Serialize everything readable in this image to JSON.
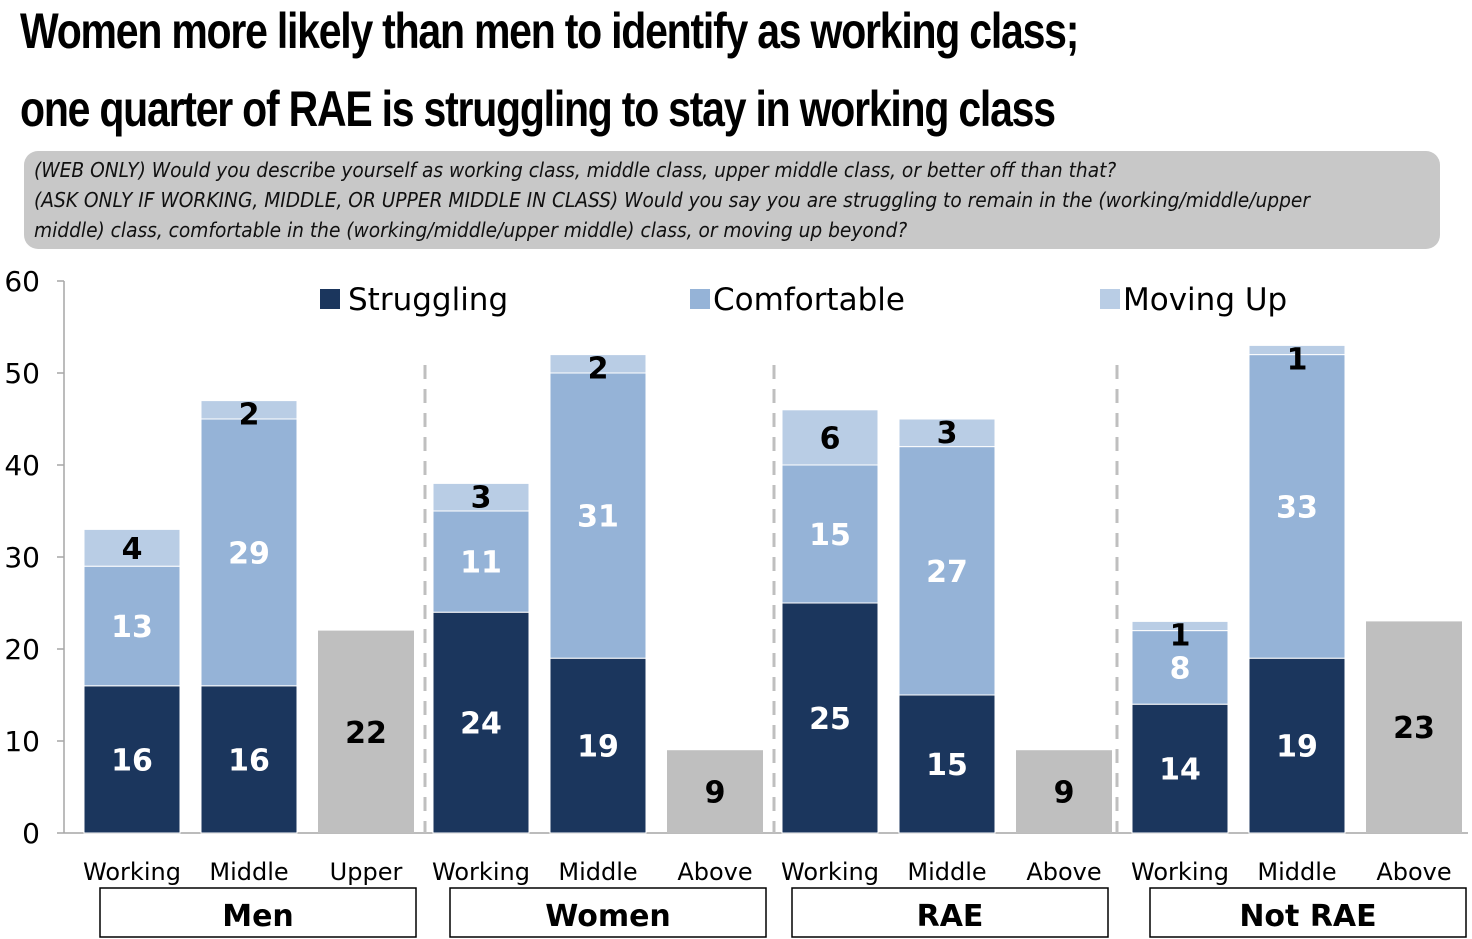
{
  "title": {
    "line1": "Women more likely than men to identify as working class;",
    "line2": "one quarter of RAE is struggling to stay in working class"
  },
  "question": {
    "line1": "(WEB ONLY) Would you describe yourself as working class, middle class, upper middle class, or better off than that?",
    "line2": "(ASK ONLY IF WORKING, MIDDLE, OR UPPER MIDDLE IN CLASS) Would you say you are struggling to remain in the (working/middle/upper",
    "line3": "middle) class, comfortable in the (working/middle/upper middle) class, or moving up beyond?"
  },
  "chart_data": {
    "type": "bar",
    "stacked": true,
    "title": "",
    "xlabel": "",
    "ylabel": "",
    "ylim": [
      0,
      60
    ],
    "yticks": [
      0,
      10,
      20,
      30,
      40,
      50,
      60
    ],
    "legend_position": "top",
    "series": [
      {
        "name": "Struggling",
        "color": "#1b365d"
      },
      {
        "name": "Comfortable",
        "color": "#95b3d7"
      },
      {
        "name": "Moving Up",
        "color": "#b9cde5"
      }
    ],
    "other_color": "#bfbfbf",
    "groups": [
      {
        "name": "Men",
        "bars": [
          {
            "label": "Working",
            "values": [
              16,
              13,
              4
            ]
          },
          {
            "label": "Middle",
            "values": [
              16,
              29,
              2
            ]
          },
          {
            "label": "Upper",
            "single": 22
          }
        ]
      },
      {
        "name": "Women",
        "bars": [
          {
            "label": "Working",
            "values": [
              24,
              11,
              3
            ]
          },
          {
            "label": "Middle",
            "values": [
              19,
              31,
              2
            ]
          },
          {
            "label": "Above",
            "single": 9
          }
        ]
      },
      {
        "name": "RAE",
        "bars": [
          {
            "label": "Working",
            "values": [
              25,
              15,
              6
            ]
          },
          {
            "label": "Middle",
            "values": [
              15,
              27,
              3
            ]
          },
          {
            "label": "Above",
            "single": 9
          }
        ]
      },
      {
        "name": "Not RAE",
        "bars": [
          {
            "label": "Working",
            "values": [
              14,
              8,
              1
            ]
          },
          {
            "label": "Middle",
            "values": [
              19,
              33,
              1
            ]
          },
          {
            "label": "Above",
            "single": 23
          }
        ]
      }
    ]
  }
}
